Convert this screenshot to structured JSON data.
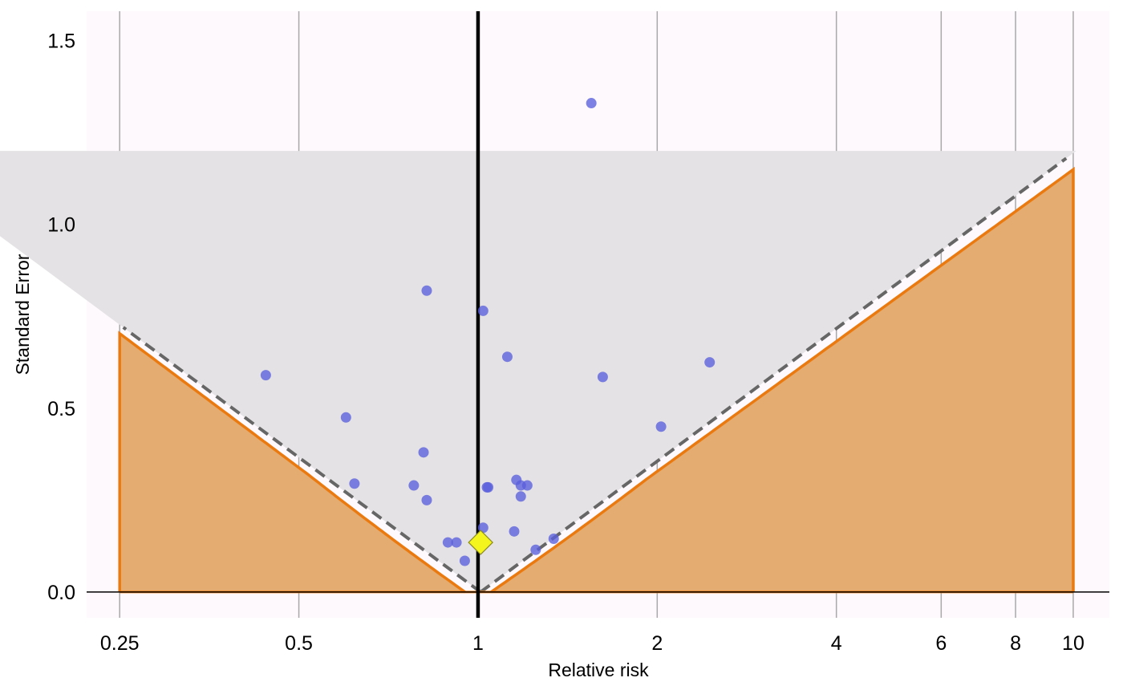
{
  "chart_data": {
    "type": "scatter",
    "xlabel": "Relative risk",
    "ylabel": "Standard Error",
    "x_scale": "log",
    "x_ticks": [
      0.25,
      0.5,
      1,
      2,
      4,
      6,
      8,
      10
    ],
    "x_tick_labels": [
      "0.25",
      "0.5",
      "1",
      "2",
      "4",
      "6",
      "8",
      "10"
    ],
    "y_ticks": [
      0,
      0.5,
      1,
      1.5
    ],
    "y_tick_labels": [
      "0.0",
      "0.5",
      "1.0",
      "1.5"
    ],
    "xlim": [
      0.22,
      11.5
    ],
    "ylim": [
      -0.07,
      1.58
    ],
    "grid": "vertical",
    "null_line_x": 1,
    "pooled_estimate": {
      "x": 1.01,
      "se": 0.135
    },
    "points": [
      {
        "x": 1.55,
        "se": 1.33
      },
      {
        "x": 0.82,
        "se": 0.82
      },
      {
        "x": 1.02,
        "se": 0.765
      },
      {
        "x": 1.12,
        "se": 0.64
      },
      {
        "x": 2.45,
        "se": 0.625
      },
      {
        "x": 0.44,
        "se": 0.59
      },
      {
        "x": 1.62,
        "se": 0.585
      },
      {
        "x": 0.6,
        "se": 0.475
      },
      {
        "x": 2.03,
        "se": 0.45
      },
      {
        "x": 0.81,
        "se": 0.38
      },
      {
        "x": 1.16,
        "se": 0.305
      },
      {
        "x": 0.62,
        "se": 0.295
      },
      {
        "x": 1.21,
        "se": 0.29
      },
      {
        "x": 1.18,
        "se": 0.29
      },
      {
        "x": 1.035,
        "se": 0.285
      },
      {
        "x": 1.04,
        "se": 0.285
      },
      {
        "x": 0.78,
        "se": 0.29
      },
      {
        "x": 1.18,
        "se": 0.26
      },
      {
        "x": 0.82,
        "se": 0.25
      },
      {
        "x": 1.02,
        "se": 0.175
      },
      {
        "x": 1.15,
        "se": 0.165
      },
      {
        "x": 0.89,
        "se": 0.135
      },
      {
        "x": 0.92,
        "se": 0.135
      },
      {
        "x": 1.34,
        "se": 0.145
      },
      {
        "x": 1.25,
        "se": 0.115
      },
      {
        "x": 0.95,
        "se": 0.085
      }
    ],
    "colors": {
      "background": "#fdf9fd",
      "point": "#5a5fdc",
      "pooled": "#f5f51e",
      "contour_fill": "#e4ac70",
      "contour_line": "#ea7a10",
      "funnel_fill": "#e4e2e4",
      "funnel_line": "#666666",
      "grid": "#a9a9a9"
    }
  }
}
